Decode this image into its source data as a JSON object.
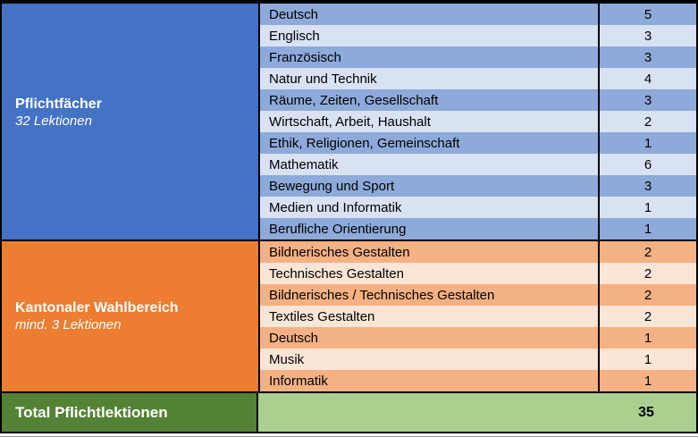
{
  "colors": {
    "border": "#000000",
    "header_text": "#FFFFFF",
    "row_text": "#000000",
    "blue_header": "#4472C4",
    "blue_row_dark": "#8EAADB",
    "blue_row_light": "#D9E2F3",
    "orange_header": "#ED7D31",
    "orange_row_dark": "#F4B183",
    "orange_row_light": "#FBE5D6",
    "green_header": "#548235",
    "green_row": "#A9D08E"
  },
  "sections": {
    "pflicht": {
      "title": "Pflichtfächer",
      "subtitle": "32 Lektionen",
      "rows": [
        {
          "subject": "Deutsch",
          "lessons": "5"
        },
        {
          "subject": "Englisch",
          "lessons": "3"
        },
        {
          "subject": "Französisch",
          "lessons": "3"
        },
        {
          "subject": "Natur und Technik",
          "lessons": "4"
        },
        {
          "subject": "Räume, Zeiten, Gesellschaft",
          "lessons": "3"
        },
        {
          "subject": "Wirtschaft, Arbeit, Haushalt",
          "lessons": "2"
        },
        {
          "subject": "Ethik, Religionen, Gemeinschaft",
          "lessons": "1"
        },
        {
          "subject": "Mathematik",
          "lessons": "6"
        },
        {
          "subject": "Bewegung und Sport",
          "lessons": "3"
        },
        {
          "subject": "Medien und Informatik",
          "lessons": "1"
        },
        {
          "subject": "Berufliche Orientierung",
          "lessons": "1"
        }
      ]
    },
    "wahl": {
      "title": "Kantonaler Wahlbereich",
      "subtitle": "mind. 3 Lektionen",
      "rows": [
        {
          "subject": "Bildnerisches Gestalten",
          "lessons": "2"
        },
        {
          "subject": "Technisches Gestalten",
          "lessons": "2"
        },
        {
          "subject": "Bildnerisches / Technisches Gestalten",
          "lessons": "2"
        },
        {
          "subject": "Textiles Gestalten",
          "lessons": "2"
        },
        {
          "subject": "Deutsch",
          "lessons": "1"
        },
        {
          "subject": "Musik",
          "lessons": "1"
        },
        {
          "subject": "Informatik",
          "lessons": "1"
        }
      ]
    }
  },
  "total": {
    "label": "Total Pflichtlektionen",
    "value": "35"
  }
}
